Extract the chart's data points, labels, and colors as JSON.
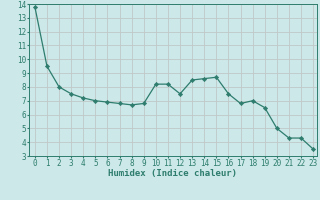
{
  "x": [
    0,
    1,
    2,
    3,
    4,
    5,
    6,
    7,
    8,
    9,
    10,
    11,
    12,
    13,
    14,
    15,
    16,
    17,
    18,
    19,
    20,
    21,
    22,
    23
  ],
  "y": [
    13.8,
    9.5,
    8.0,
    7.5,
    7.2,
    7.0,
    6.9,
    6.8,
    6.7,
    6.8,
    8.2,
    8.2,
    7.5,
    8.5,
    8.6,
    8.7,
    7.5,
    6.8,
    7.0,
    6.5,
    5.0,
    4.3,
    4.3,
    3.5
  ],
  "line_color": "#2e7d6e",
  "marker": "D",
  "marker_size": 2.2,
  "bg_color": "#cce8e8",
  "grid_color": "#c0c8c8",
  "xlabel": "Humidex (Indice chaleur)",
  "ylim": [
    3,
    14
  ],
  "xlim": [
    -0.5,
    23.3
  ],
  "yticks": [
    3,
    4,
    5,
    6,
    7,
    8,
    9,
    10,
    11,
    12,
    13,
    14
  ],
  "xticks": [
    0,
    1,
    2,
    3,
    4,
    5,
    6,
    7,
    8,
    9,
    10,
    11,
    12,
    13,
    14,
    15,
    16,
    17,
    18,
    19,
    20,
    21,
    22,
    23
  ],
  "tick_color": "#2e7d6e",
  "label_color": "#2e7d6e",
  "font_size_label": 6.5,
  "font_size_tick": 5.5
}
